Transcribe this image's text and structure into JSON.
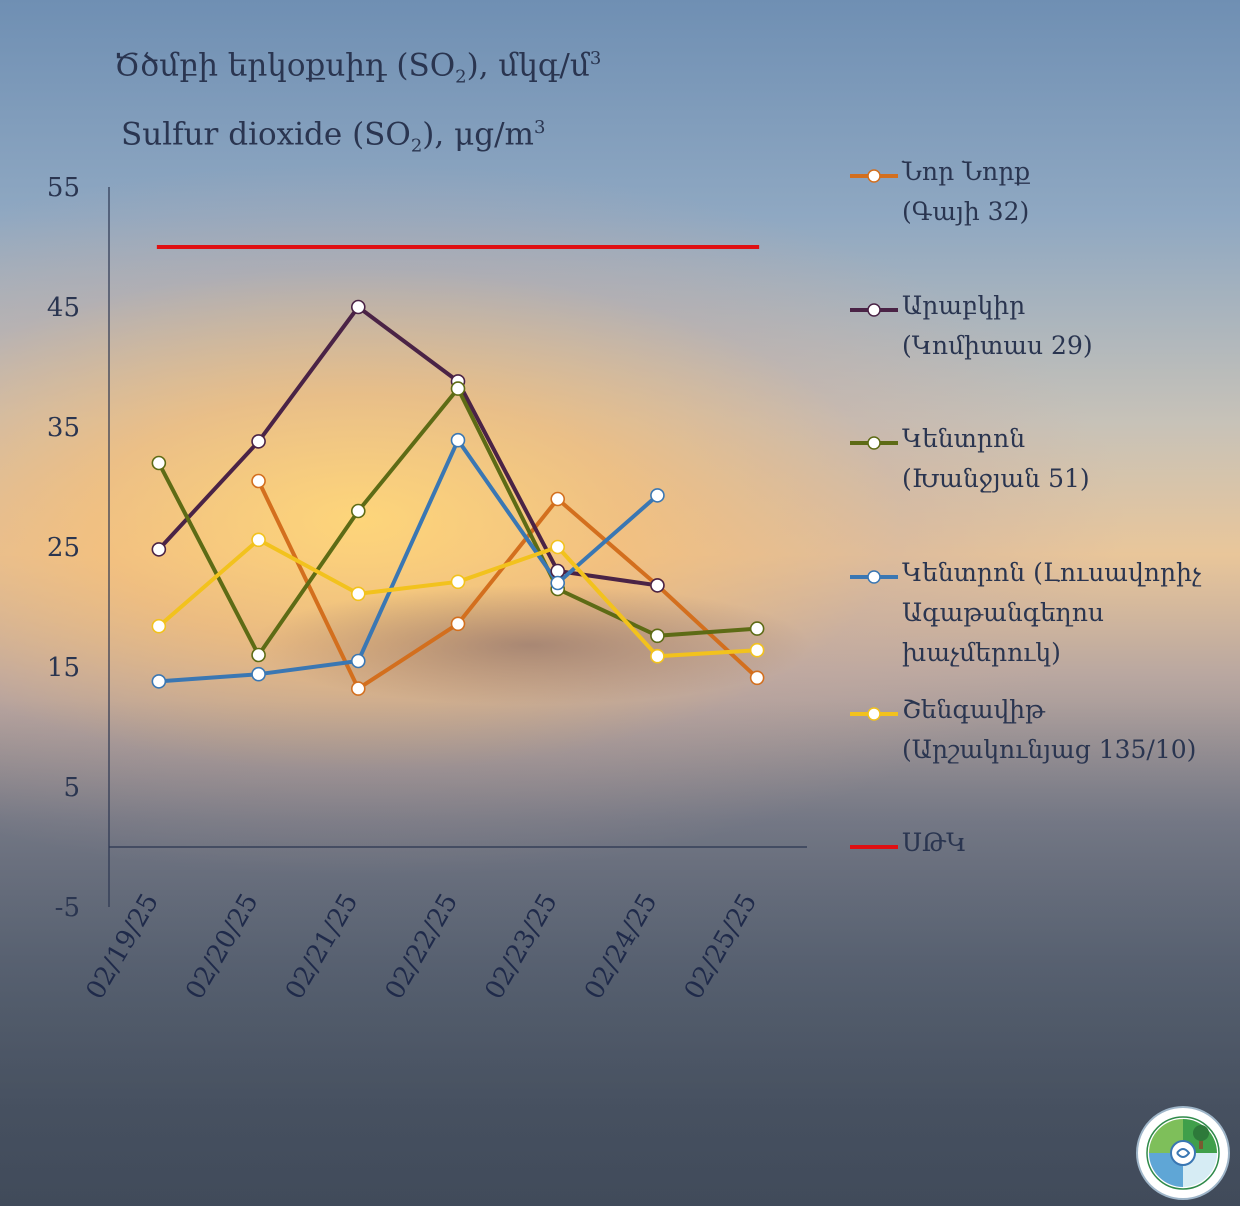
{
  "title": {
    "line1": "Ծծմբի երկօքսիդ (SO",
    "line1_sub": "2",
    "line1_tail": "), մկգ/մ",
    "line1_sup": "3",
    "line2": "Sulfur dioxide (SO",
    "line2_sub": "2",
    "line2_tail": "), μg/m",
    "line2_sup": "3"
  },
  "chart_data": {
    "type": "line",
    "categories": [
      "02/19/25",
      "02/20/25",
      "02/21/25",
      "02/22/25",
      "02/23/25",
      "02/24/25",
      "02/25/25"
    ],
    "ylim": [
      -5,
      55
    ],
    "yticks": [
      55,
      45,
      35,
      25,
      15,
      5,
      -5
    ],
    "grid": false,
    "legend_position": "right",
    "series": [
      {
        "name": "Նոր Նորք (Գայի 32)",
        "color": "#d36f1e",
        "values": [
          null,
          30.5,
          13.2,
          18.6,
          29.0,
          21.8,
          14.1
        ]
      },
      {
        "name": "Արաբկիր (Կոմիտաս 29)",
        "color": "#4a2346",
        "values": [
          24.8,
          33.8,
          45.0,
          38.8,
          23.0,
          21.8,
          null
        ]
      },
      {
        "name": "Կենտրոն (Խանջյան 51)",
        "color": "#5d6b15",
        "values": [
          32.0,
          16.0,
          28.0,
          38.2,
          21.5,
          17.6,
          18.2
        ]
      },
      {
        "name": "Կենտրոն (Լուսավորիչ Ագաթանգեղոս խաչմերուկ)",
        "color": "#3a77b3",
        "values": [
          13.8,
          14.4,
          15.5,
          33.9,
          22.0,
          29.3,
          null
        ]
      },
      {
        "name": "Շենգավիթ (Արշակունյաց 135/10)",
        "color": "#f2c21d",
        "values": [
          18.4,
          25.6,
          21.1,
          22.1,
          25.0,
          15.9,
          16.4
        ]
      }
    ],
    "threshold": {
      "name": "ՍԹԿ",
      "color": "#e00f12",
      "value": 50
    }
  },
  "legend": [
    {
      "line1": "Նոր Նորք",
      "line2": "(Գայի 32)",
      "line3": "",
      "color": "#d36f1e"
    },
    {
      "line1": "Արաբկիր",
      "line2": "(Կոմիտաս 29)",
      "line3": "",
      "color": "#4a2346"
    },
    {
      "line1": "Կենտրոն",
      "line2": "(Խանջյան 51)",
      "line3": "",
      "color": "#5d6b15"
    },
    {
      "line1": "Կենտրոն (Լուսավորիչ",
      "line2": "Ագաթանգեղոս",
      "line3": "խաչմերուկ)",
      "color": "#3a77b3"
    },
    {
      "line1": "Շենգավիթ",
      "line2": "(Արշակունյաց 135/10)",
      "line3": "",
      "color": "#f2c21d"
    },
    {
      "line1": "ՍԹԿ",
      "line2": "",
      "line3": "",
      "color": "#e00f12"
    }
  ]
}
